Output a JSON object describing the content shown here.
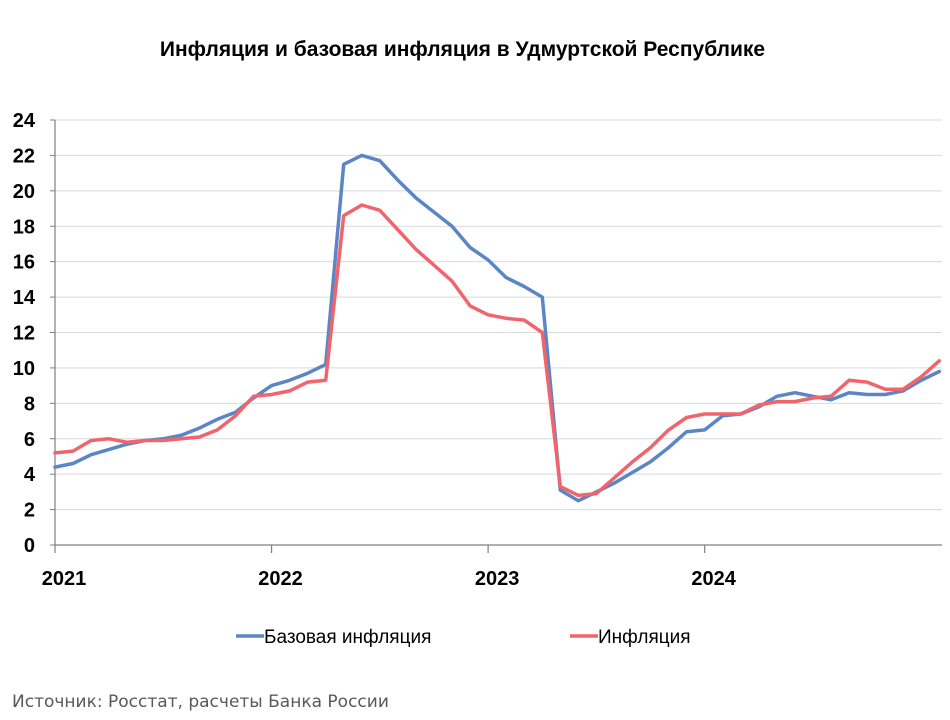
{
  "chart_data": {
    "type": "line",
    "title": "Инфляция и базовая инфляция в Удмуртской Республике",
    "source": "Источник: Росстат, расчеты Банка России",
    "xlabel": "",
    "ylabel": "",
    "ylim": [
      0,
      24
    ],
    "yticks": [
      "0",
      "2",
      "4",
      "6",
      "8",
      "10",
      "12",
      "14",
      "16",
      "18",
      "20",
      "22",
      "24"
    ],
    "xticks": [
      "2021",
      "2022",
      "2023",
      "2024"
    ],
    "grid": true,
    "legend_position": "bottom",
    "x_start": "2021-01",
    "x_frequency": "monthly",
    "series": [
      {
        "name": "Базовая инфляция",
        "color": "#5B86C5",
        "values": [
          4.4,
          4.6,
          5.1,
          5.4,
          5.7,
          5.9,
          6.0,
          6.2,
          6.6,
          7.1,
          7.5,
          8.3,
          9.0,
          9.3,
          9.7,
          10.2,
          21.5,
          22.0,
          21.7,
          20.6,
          19.6,
          18.8,
          18.0,
          16.8,
          16.1,
          15.1,
          14.6,
          14.0,
          3.1,
          2.5,
          3.0,
          3.5,
          4.1,
          4.7,
          5.5,
          6.4,
          6.5,
          7.3,
          7.4,
          7.8,
          8.4,
          8.6,
          8.4,
          8.2,
          8.6,
          8.5,
          8.5,
          8.7,
          9.3,
          9.8
        ]
      },
      {
        "name": "Инфляция",
        "color": "#F2646B",
        "values": [
          5.2,
          5.3,
          5.9,
          6.0,
          5.8,
          5.9,
          5.9,
          6.0,
          6.1,
          6.5,
          7.3,
          8.4,
          8.5,
          8.7,
          9.2,
          9.3,
          18.6,
          19.2,
          18.9,
          17.8,
          16.7,
          15.8,
          14.9,
          13.5,
          13.0,
          12.8,
          12.7,
          12.0,
          3.3,
          2.8,
          2.9,
          3.8,
          4.7,
          5.5,
          6.5,
          7.2,
          7.4,
          7.4,
          7.4,
          7.9,
          8.1,
          8.1,
          8.3,
          8.4,
          9.3,
          9.2,
          8.8,
          8.8,
          9.5,
          10.4
        ]
      }
    ]
  }
}
